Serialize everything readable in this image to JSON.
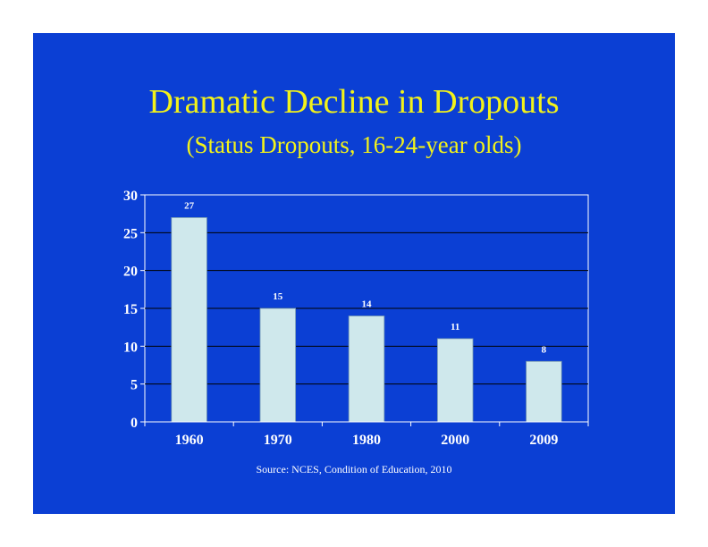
{
  "slide": {
    "title": "Dramatic Decline in Dropouts",
    "subtitle": "(Status Dropouts, 16-24-year olds)",
    "source": "Source: NCES, Condition of Education, 2010"
  },
  "colors": {
    "background": "#0b3fd4",
    "title": "#f2f21a",
    "bar_fill": "#cfe8ec",
    "text": "#ffffff",
    "gridline": "#000000"
  },
  "chart_data": {
    "type": "bar",
    "categories": [
      "1960",
      "1970",
      "1980",
      "2000",
      "2009"
    ],
    "values": [
      27,
      15,
      14,
      11,
      8
    ],
    "data_labels": [
      "27",
      "15",
      "14",
      "11",
      "8"
    ],
    "xlabel": "",
    "ylabel": "",
    "ylim": [
      0,
      30
    ],
    "yticks": [
      0,
      5,
      10,
      15,
      20,
      25,
      30
    ],
    "grid": true,
    "legend": "none"
  }
}
